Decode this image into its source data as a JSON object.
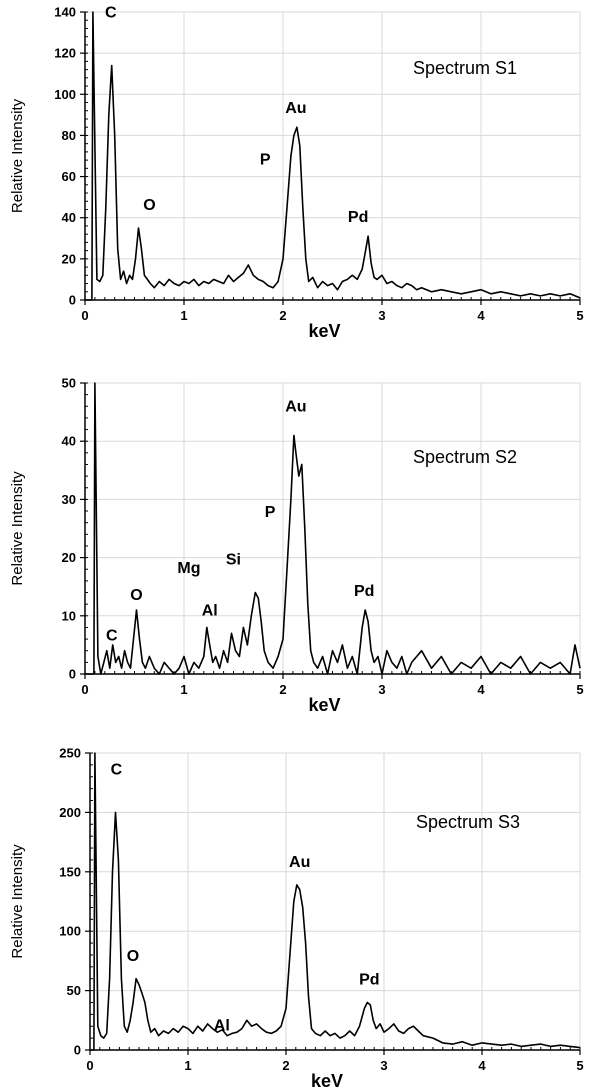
{
  "chart_data": [
    {
      "type": "line",
      "title": "Spectrum S1",
      "xlabel": "keV",
      "ylabel": "Relative Intensity",
      "xlim": [
        0,
        5
      ],
      "ylim": [
        0,
        140
      ],
      "xticks": [
        0,
        1,
        2,
        3,
        4,
        5
      ],
      "yticks": [
        0,
        20,
        40,
        60,
        80,
        100,
        120,
        140
      ],
      "grid": true,
      "annotations": [
        {
          "text": "C",
          "x": 0.27,
          "y": 114
        },
        {
          "text": "O",
          "x": 0.55,
          "y": 35
        },
        {
          "text": "P",
          "x": 1.82,
          "y": 60
        },
        {
          "text": "Au",
          "x": 2.13,
          "y": 84
        },
        {
          "text": "Pd",
          "x": 2.86,
          "y": 31
        }
      ],
      "series": [
        {
          "x": [
            0.0,
            0.07,
            0.08,
            0.12,
            0.15,
            0.18,
            0.21,
            0.24,
            0.27,
            0.3,
            0.33,
            0.36,
            0.39,
            0.42,
            0.45,
            0.48,
            0.51,
            0.54,
            0.57,
            0.6,
            0.63,
            0.66,
            0.7,
            0.75,
            0.8,
            0.85,
            0.9,
            0.95,
            1.0,
            1.05,
            1.1,
            1.15,
            1.2,
            1.25,
            1.3,
            1.35,
            1.4,
            1.45,
            1.5,
            1.55,
            1.6,
            1.65,
            1.7,
            1.75,
            1.8,
            1.85,
            1.9,
            1.95,
            2.0,
            2.04,
            2.08,
            2.11,
            2.14,
            2.17,
            2.2,
            2.23,
            2.26,
            2.3,
            2.35,
            2.4,
            2.45,
            2.5,
            2.55,
            2.6,
            2.65,
            2.7,
            2.75,
            2.8,
            2.83,
            2.86,
            2.89,
            2.92,
            2.95,
            3.0,
            3.05,
            3.1,
            3.15,
            3.2,
            3.25,
            3.3,
            3.35,
            3.4,
            3.5,
            3.6,
            3.7,
            3.8,
            3.9,
            4.0,
            4.1,
            4.2,
            4.3,
            4.4,
            4.5,
            4.6,
            4.7,
            4.8,
            4.9,
            5.0
          ],
          "y": [
            0,
            0,
            140,
            10,
            9,
            12,
            45,
            90,
            114,
            80,
            25,
            10,
            14,
            8,
            12,
            10,
            20,
            35,
            25,
            12,
            10,
            8,
            6,
            9,
            7,
            10,
            8,
            7,
            9,
            8,
            10,
            7,
            9,
            8,
            10,
            9,
            8,
            12,
            9,
            11,
            13,
            17,
            12,
            10,
            9,
            7,
            6,
            9,
            20,
            45,
            70,
            80,
            84,
            75,
            45,
            20,
            9,
            11,
            6,
            9,
            7,
            8,
            5,
            9,
            10,
            12,
            10,
            15,
            23,
            31,
            18,
            11,
            10,
            12,
            8,
            9,
            7,
            6,
            8,
            7,
            5,
            6,
            4,
            5,
            4,
            3,
            4,
            5,
            3,
            4,
            3,
            2,
            3,
            2,
            3,
            2,
            3,
            1
          ]
        }
      ]
    },
    {
      "type": "line",
      "title": "Spectrum S2",
      "xlabel": "keV",
      "ylabel": "Relative Intensity",
      "xlim": [
        0,
        5
      ],
      "ylim": [
        0,
        50
      ],
      "xticks": [
        0,
        1,
        2,
        3,
        4,
        5
      ],
      "yticks": [
        0,
        10,
        20,
        30,
        40,
        50
      ],
      "grid": true,
      "annotations": [
        {
          "text": "C",
          "x": 0.27,
          "y": 3
        },
        {
          "text": "O",
          "x": 0.52,
          "y": 11
        },
        {
          "text": "Mg",
          "x": 1.05,
          "y": 16
        },
        {
          "text": "Al",
          "x": 1.26,
          "y": 8
        },
        {
          "text": "Si",
          "x": 1.6,
          "y": 15
        },
        {
          "text": "P",
          "x": 1.87,
          "y": 27
        },
        {
          "text": "Au",
          "x": 2.13,
          "y": 41
        },
        {
          "text": "Pd",
          "x": 2.82,
          "y": 11
        }
      ],
      "series": [
        {
          "x": [
            0.0,
            0.09,
            0.1,
            0.13,
            0.16,
            0.19,
            0.22,
            0.25,
            0.28,
            0.31,
            0.34,
            0.37,
            0.4,
            0.43,
            0.46,
            0.49,
            0.52,
            0.55,
            0.58,
            0.61,
            0.65,
            0.7,
            0.75,
            0.8,
            0.85,
            0.9,
            0.95,
            1.0,
            1.05,
            1.1,
            1.15,
            1.2,
            1.23,
            1.26,
            1.29,
            1.32,
            1.36,
            1.4,
            1.44,
            1.48,
            1.52,
            1.56,
            1.6,
            1.64,
            1.68,
            1.72,
            1.75,
            1.78,
            1.81,
            1.85,
            1.9,
            1.95,
            2.0,
            2.04,
            2.08,
            2.11,
            2.13,
            2.16,
            2.19,
            2.22,
            2.25,
            2.28,
            2.31,
            2.35,
            2.4,
            2.45,
            2.5,
            2.55,
            2.6,
            2.65,
            2.7,
            2.75,
            2.8,
            2.83,
            2.86,
            2.89,
            2.92,
            2.96,
            3.0,
            3.05,
            3.1,
            3.15,
            3.2,
            3.25,
            3.3,
            3.4,
            3.5,
            3.6,
            3.7,
            3.8,
            3.9,
            4.0,
            4.1,
            4.2,
            4.3,
            4.4,
            4.5,
            4.6,
            4.7,
            4.8,
            4.9,
            4.95,
            5.0
          ],
          "y": [
            0,
            0,
            50,
            3,
            0,
            2,
            4,
            1,
            5,
            2,
            3,
            1,
            4,
            2,
            1,
            6,
            11,
            6,
            2,
            1,
            3,
            1,
            0,
            2,
            1,
            0,
            1,
            3,
            0,
            2,
            1,
            3,
            8,
            5,
            2,
            3,
            1,
            4,
            2,
            7,
            4,
            3,
            8,
            5,
            10,
            14,
            13,
            9,
            4,
            2,
            1,
            3,
            6,
            18,
            30,
            41,
            38,
            34,
            36,
            25,
            12,
            4,
            2,
            1,
            3,
            0,
            4,
            2,
            5,
            1,
            3,
            0,
            8,
            11,
            9,
            4,
            2,
            3,
            0,
            4,
            2,
            1,
            3,
            0,
            2,
            4,
            1,
            3,
            0,
            2,
            1,
            3,
            0,
            2,
            1,
            3,
            0,
            2,
            1,
            2,
            0,
            5,
            1
          ]
        }
      ]
    },
    {
      "type": "line",
      "title": "Spectrum S3",
      "xlabel": "keV",
      "ylabel": "Relative Intensity",
      "xlim": [
        0,
        5
      ],
      "ylim": [
        0,
        250
      ],
      "xticks": [
        0,
        1,
        2,
        3,
        4,
        5
      ],
      "yticks": [
        0,
        50,
        100,
        150,
        200,
        250
      ],
      "grid": true,
      "annotations": [
        {
          "text": "C",
          "x": 0.27,
          "y": 200
        },
        {
          "text": "O",
          "x": 0.52,
          "y": 58
        },
        {
          "text": "Al",
          "x": 1.6,
          "y": 25
        },
        {
          "text": "Au",
          "x": 2.14,
          "y": 139
        },
        {
          "text": "Pd",
          "x": 2.85,
          "y": 40
        }
      ],
      "series": [
        {
          "x": [
            0.0,
            0.04,
            0.05,
            0.08,
            0.11,
            0.14,
            0.17,
            0.2,
            0.23,
            0.26,
            0.29,
            0.32,
            0.35,
            0.38,
            0.41,
            0.44,
            0.47,
            0.5,
            0.53,
            0.56,
            0.59,
            0.62,
            0.66,
            0.7,
            0.75,
            0.8,
            0.85,
            0.9,
            0.95,
            1.0,
            1.05,
            1.1,
            1.15,
            1.2,
            1.25,
            1.3,
            1.35,
            1.4,
            1.45,
            1.5,
            1.55,
            1.6,
            1.65,
            1.7,
            1.75,
            1.8,
            1.85,
            1.9,
            1.95,
            2.0,
            2.04,
            2.08,
            2.11,
            2.14,
            2.17,
            2.2,
            2.23,
            2.26,
            2.3,
            2.35,
            2.4,
            2.45,
            2.5,
            2.55,
            2.6,
            2.65,
            2.7,
            2.75,
            2.8,
            2.83,
            2.86,
            2.89,
            2.92,
            2.96,
            3.0,
            3.05,
            3.1,
            3.15,
            3.2,
            3.25,
            3.3,
            3.35,
            3.4,
            3.5,
            3.6,
            3.7,
            3.8,
            3.9,
            4.0,
            4.1,
            4.2,
            4.3,
            4.4,
            4.5,
            4.6,
            4.7,
            4.8,
            4.9,
            5.0
          ],
          "y": [
            0,
            0,
            250,
            20,
            12,
            10,
            14,
            60,
            150,
            200,
            160,
            60,
            20,
            15,
            25,
            40,
            60,
            55,
            48,
            40,
            25,
            15,
            18,
            12,
            16,
            14,
            18,
            15,
            20,
            18,
            14,
            20,
            16,
            22,
            18,
            15,
            17,
            12,
            14,
            15,
            18,
            25,
            20,
            22,
            18,
            15,
            14,
            16,
            20,
            35,
            80,
            125,
            139,
            135,
            120,
            90,
            45,
            18,
            14,
            12,
            16,
            12,
            14,
            10,
            12,
            16,
            12,
            20,
            35,
            40,
            38,
            25,
            18,
            22,
            15,
            18,
            22,
            16,
            14,
            18,
            20,
            16,
            12,
            10,
            6,
            5,
            7,
            4,
            6,
            5,
            4,
            5,
            3,
            4,
            5,
            3,
            4,
            3,
            2
          ]
        }
      ]
    }
  ]
}
